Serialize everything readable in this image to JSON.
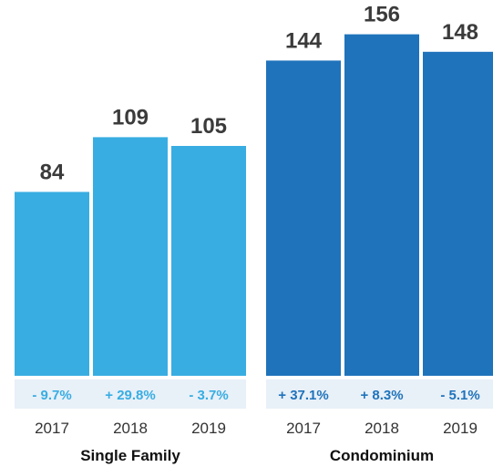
{
  "chart_data": {
    "type": "bar",
    "title": "",
    "xlabel": "",
    "ylabel": "",
    "groups": [
      {
        "name": "Single Family",
        "color": "#38ade2",
        "change_color": "#38ade2",
        "categories": [
          "2017",
          "2018",
          "2019"
        ],
        "values": [
          84,
          109,
          105
        ],
        "changes": [
          "- 9.7%",
          "+ 29.8%",
          "- 3.7%"
        ]
      },
      {
        "name": "Condominium",
        "color": "#1f73bb",
        "change_color": "#1f73bb",
        "categories": [
          "2017",
          "2018",
          "2019"
        ],
        "values": [
          144,
          156,
          148
        ],
        "changes": [
          "+ 37.1%",
          "+ 8.3%",
          "- 5.1%"
        ]
      }
    ],
    "grid": false,
    "legend": "none",
    "band_color": "#e8f0f8"
  }
}
